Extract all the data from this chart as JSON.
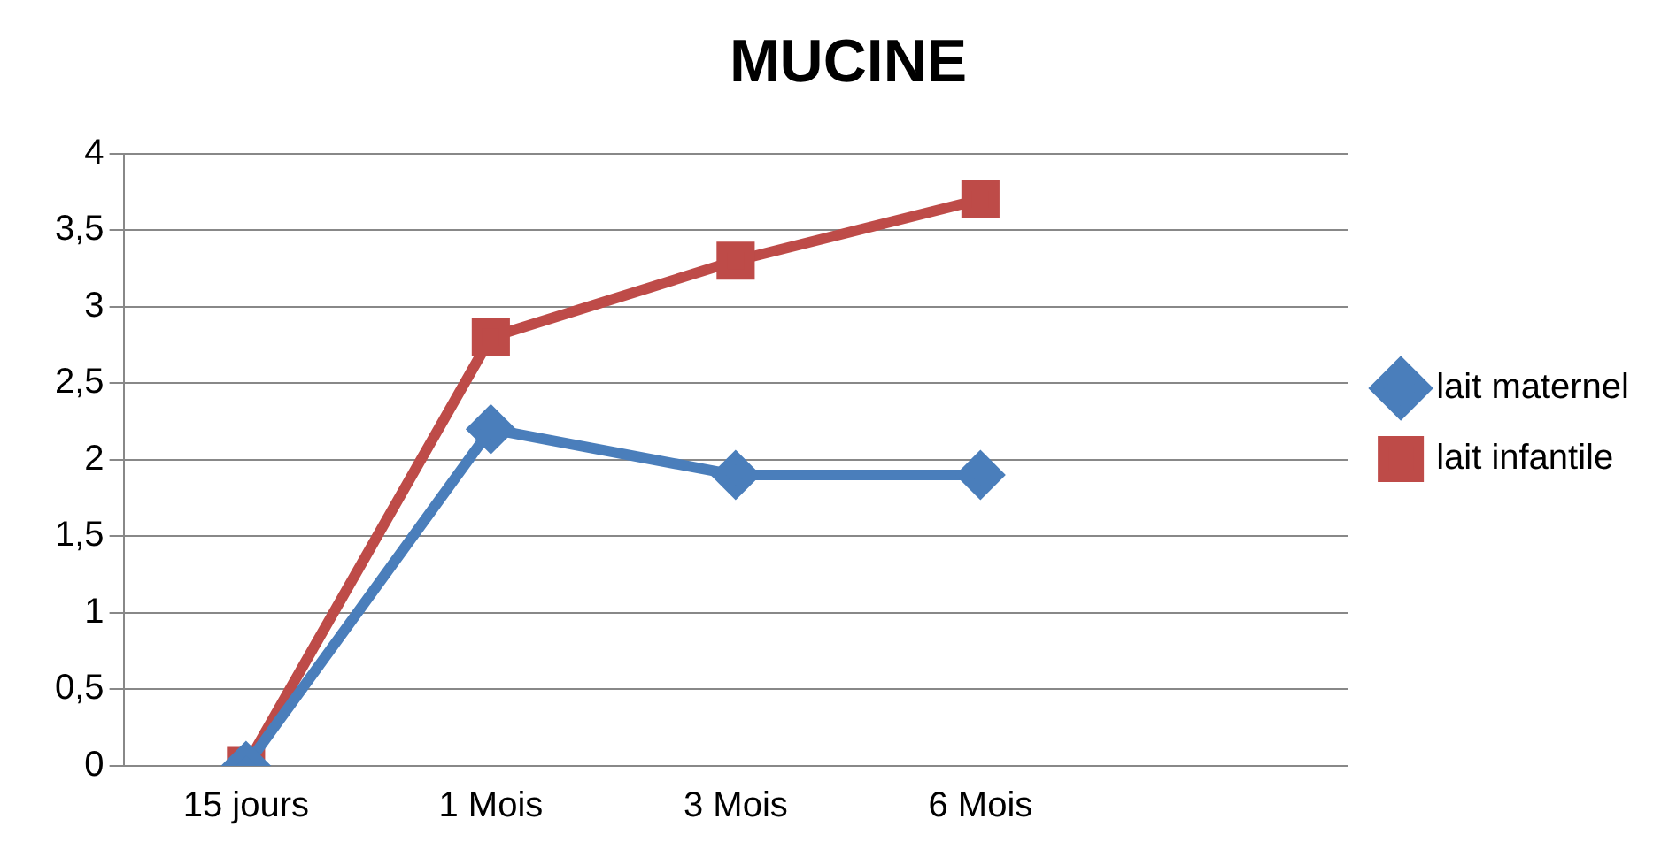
{
  "chart_data": {
    "type": "line",
    "title": "MUCINE",
    "categories": [
      "15 jours",
      "1 Mois",
      "3 Mois",
      "6 Mois",
      null
    ],
    "series": [
      {
        "name": "lait maternel",
        "color": "#4a7ebb",
        "values": [
          0,
          2.2,
          1.9,
          1.9,
          null
        ],
        "marker": "diamond"
      },
      {
        "name": "lait infantile",
        "color": "#be4b48",
        "values": [
          0,
          2.8,
          3.3,
          3.7,
          null
        ],
        "marker": "square"
      }
    ],
    "ylim": [
      0,
      4
    ],
    "yticks": [
      0,
      {
        "value": 0.5,
        "label": "0,5"
      },
      1,
      {
        "value": 1.5,
        "label": "1,5"
      },
      2,
      {
        "value": 2.5,
        "label": "2,5"
      },
      3,
      {
        "value": 3.5,
        "label": "3,5"
      },
      4
    ],
    "grid": "y",
    "legend": "right"
  }
}
